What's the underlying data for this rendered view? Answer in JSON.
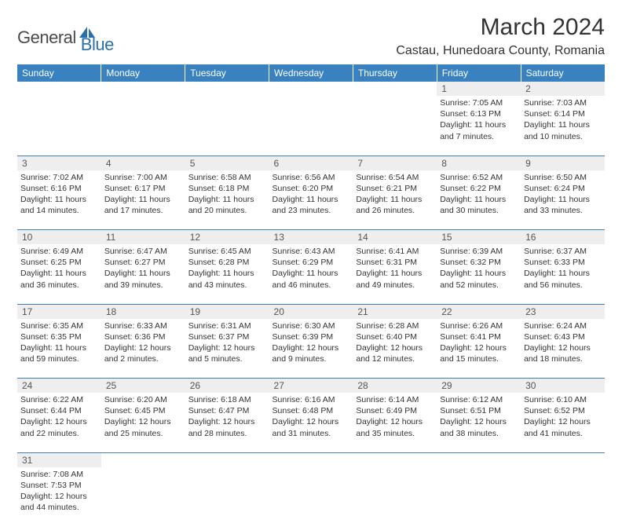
{
  "logo": {
    "general": "General",
    "blue": "Blue",
    "icon_color": "#2b6fab"
  },
  "title": "March 2024",
  "location": "Castau, Hunedoara County, Romania",
  "colors": {
    "header_bg": "#3a81c0",
    "header_text": "#ffffff",
    "daynum_bg": "#eeeeee",
    "border": "#3a81c0"
  },
  "day_headers": [
    "Sunday",
    "Monday",
    "Tuesday",
    "Wednesday",
    "Thursday",
    "Friday",
    "Saturday"
  ],
  "weeks": [
    [
      null,
      null,
      null,
      null,
      null,
      {
        "n": "1",
        "sunrise": "7:05 AM",
        "sunset": "6:13 PM",
        "daylight": "11 hours and 7 minutes."
      },
      {
        "n": "2",
        "sunrise": "7:03 AM",
        "sunset": "6:14 PM",
        "daylight": "11 hours and 10 minutes."
      }
    ],
    [
      {
        "n": "3",
        "sunrise": "7:02 AM",
        "sunset": "6:16 PM",
        "daylight": "11 hours and 14 minutes."
      },
      {
        "n": "4",
        "sunrise": "7:00 AM",
        "sunset": "6:17 PM",
        "daylight": "11 hours and 17 minutes."
      },
      {
        "n": "5",
        "sunrise": "6:58 AM",
        "sunset": "6:18 PM",
        "daylight": "11 hours and 20 minutes."
      },
      {
        "n": "6",
        "sunrise": "6:56 AM",
        "sunset": "6:20 PM",
        "daylight": "11 hours and 23 minutes."
      },
      {
        "n": "7",
        "sunrise": "6:54 AM",
        "sunset": "6:21 PM",
        "daylight": "11 hours and 26 minutes."
      },
      {
        "n": "8",
        "sunrise": "6:52 AM",
        "sunset": "6:22 PM",
        "daylight": "11 hours and 30 minutes."
      },
      {
        "n": "9",
        "sunrise": "6:50 AM",
        "sunset": "6:24 PM",
        "daylight": "11 hours and 33 minutes."
      }
    ],
    [
      {
        "n": "10",
        "sunrise": "6:49 AM",
        "sunset": "6:25 PM",
        "daylight": "11 hours and 36 minutes."
      },
      {
        "n": "11",
        "sunrise": "6:47 AM",
        "sunset": "6:27 PM",
        "daylight": "11 hours and 39 minutes."
      },
      {
        "n": "12",
        "sunrise": "6:45 AM",
        "sunset": "6:28 PM",
        "daylight": "11 hours and 43 minutes."
      },
      {
        "n": "13",
        "sunrise": "6:43 AM",
        "sunset": "6:29 PM",
        "daylight": "11 hours and 46 minutes."
      },
      {
        "n": "14",
        "sunrise": "6:41 AM",
        "sunset": "6:31 PM",
        "daylight": "11 hours and 49 minutes."
      },
      {
        "n": "15",
        "sunrise": "6:39 AM",
        "sunset": "6:32 PM",
        "daylight": "11 hours and 52 minutes."
      },
      {
        "n": "16",
        "sunrise": "6:37 AM",
        "sunset": "6:33 PM",
        "daylight": "11 hours and 56 minutes."
      }
    ],
    [
      {
        "n": "17",
        "sunrise": "6:35 AM",
        "sunset": "6:35 PM",
        "daylight": "11 hours and 59 minutes."
      },
      {
        "n": "18",
        "sunrise": "6:33 AM",
        "sunset": "6:36 PM",
        "daylight": "12 hours and 2 minutes."
      },
      {
        "n": "19",
        "sunrise": "6:31 AM",
        "sunset": "6:37 PM",
        "daylight": "12 hours and 5 minutes."
      },
      {
        "n": "20",
        "sunrise": "6:30 AM",
        "sunset": "6:39 PM",
        "daylight": "12 hours and 9 minutes."
      },
      {
        "n": "21",
        "sunrise": "6:28 AM",
        "sunset": "6:40 PM",
        "daylight": "12 hours and 12 minutes."
      },
      {
        "n": "22",
        "sunrise": "6:26 AM",
        "sunset": "6:41 PM",
        "daylight": "12 hours and 15 minutes."
      },
      {
        "n": "23",
        "sunrise": "6:24 AM",
        "sunset": "6:43 PM",
        "daylight": "12 hours and 18 minutes."
      }
    ],
    [
      {
        "n": "24",
        "sunrise": "6:22 AM",
        "sunset": "6:44 PM",
        "daylight": "12 hours and 22 minutes."
      },
      {
        "n": "25",
        "sunrise": "6:20 AM",
        "sunset": "6:45 PM",
        "daylight": "12 hours and 25 minutes."
      },
      {
        "n": "26",
        "sunrise": "6:18 AM",
        "sunset": "6:47 PM",
        "daylight": "12 hours and 28 minutes."
      },
      {
        "n": "27",
        "sunrise": "6:16 AM",
        "sunset": "6:48 PM",
        "daylight": "12 hours and 31 minutes."
      },
      {
        "n": "28",
        "sunrise": "6:14 AM",
        "sunset": "6:49 PM",
        "daylight": "12 hours and 35 minutes."
      },
      {
        "n": "29",
        "sunrise": "6:12 AM",
        "sunset": "6:51 PM",
        "daylight": "12 hours and 38 minutes."
      },
      {
        "n": "30",
        "sunrise": "6:10 AM",
        "sunset": "6:52 PM",
        "daylight": "12 hours and 41 minutes."
      }
    ],
    [
      {
        "n": "31",
        "sunrise": "7:08 AM",
        "sunset": "7:53 PM",
        "daylight": "12 hours and 44 minutes."
      },
      null,
      null,
      null,
      null,
      null,
      null
    ]
  ],
  "labels": {
    "sunrise": "Sunrise: ",
    "sunset": "Sunset: ",
    "daylight": "Daylight: "
  }
}
